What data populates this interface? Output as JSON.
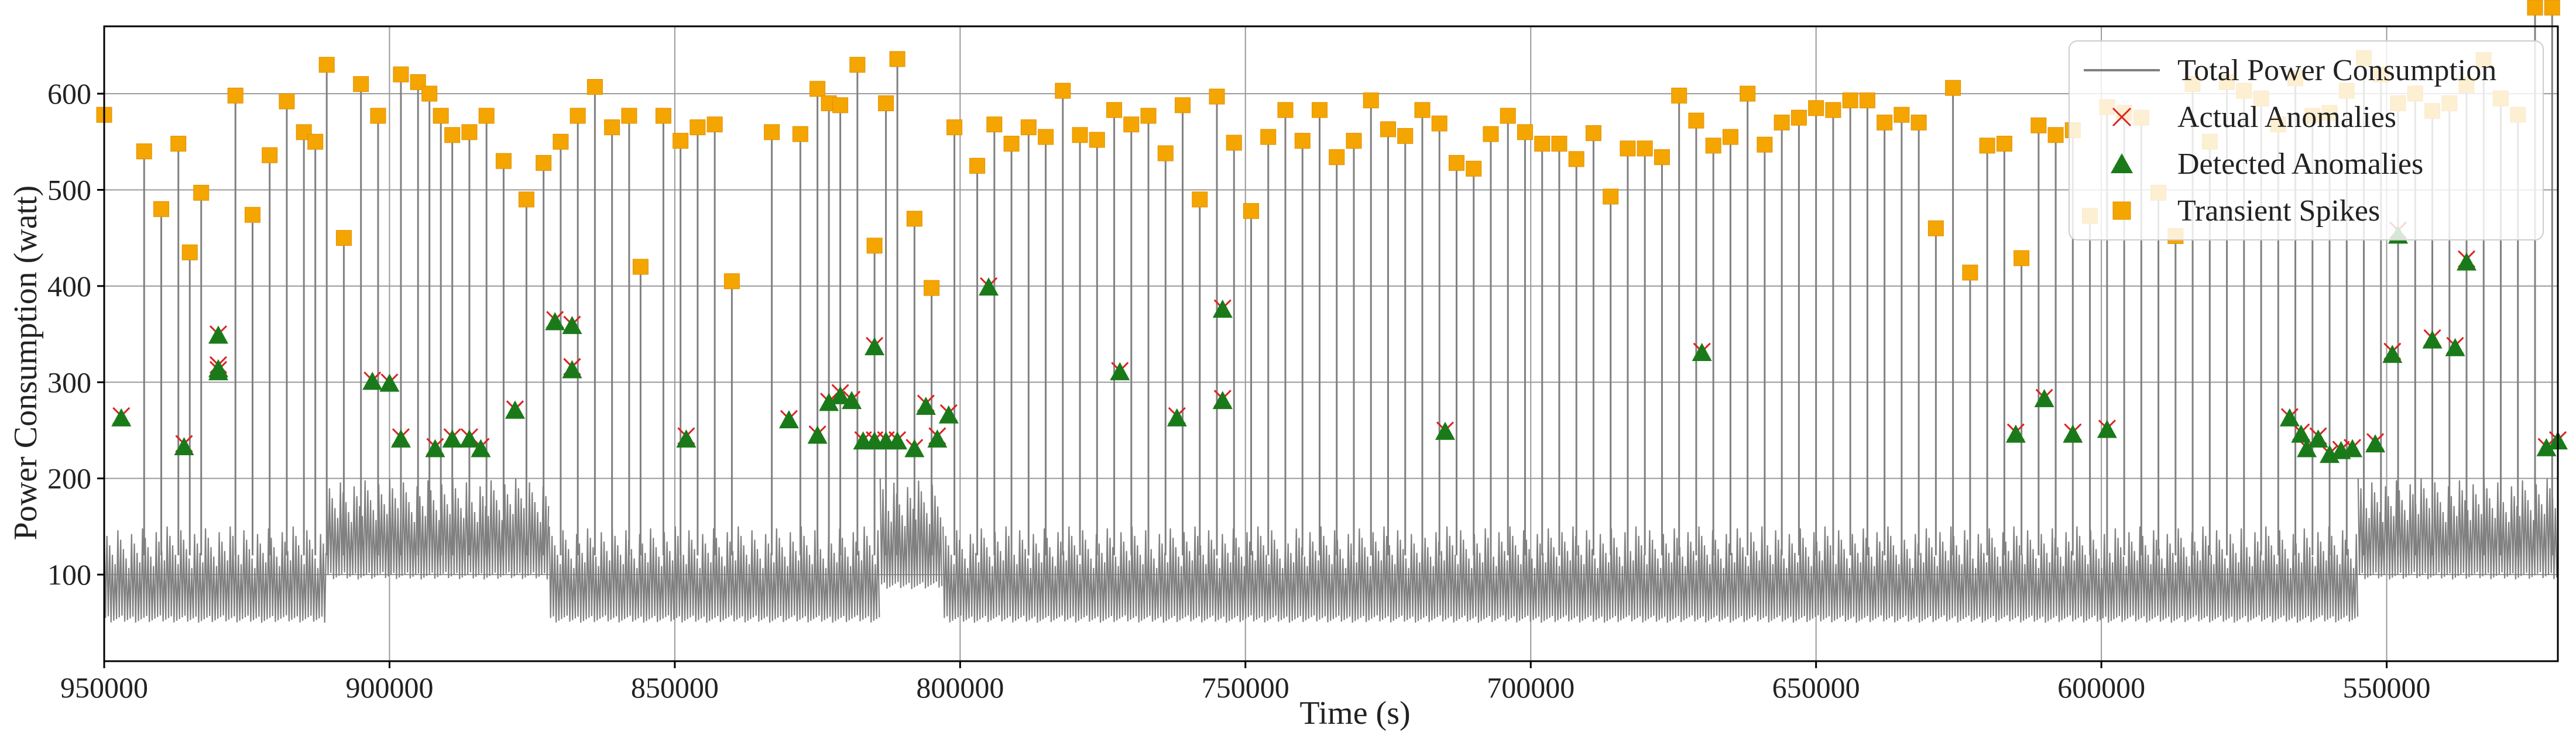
{
  "chart_data": {
    "type": "line",
    "title": "",
    "xlabel": "Time (s)",
    "ylabel": "Power Consumption (watt)",
    "xlim": [
      950000,
      520000
    ],
    "ylim": [
      10,
      670
    ],
    "x_reversed": true,
    "grid": true,
    "legend_position": "top-right",
    "x_ticks": [
      950000,
      900000,
      850000,
      800000,
      750000,
      700000,
      650000,
      600000,
      550000
    ],
    "y_ticks": [
      100,
      200,
      300,
      400,
      500,
      600
    ],
    "series": [
      {
        "name": "Total Power Consumption",
        "kind": "line",
        "color": "#808080",
        "segments": [
          {
            "x_start": 950000,
            "x_end": 911000,
            "low": 50,
            "high": 150
          },
          {
            "x_start": 911000,
            "x_end": 872000,
            "low": 95,
            "high": 200
          },
          {
            "x_start": 872000,
            "x_end": 814000,
            "low": 50,
            "high": 150
          },
          {
            "x_start": 814000,
            "x_end": 803000,
            "low": 85,
            "high": 200
          },
          {
            "x_start": 803000,
            "x_end": 555000,
            "low": 50,
            "high": 150
          },
          {
            "x_start": 555000,
            "x_end": 520000,
            "low": 95,
            "high": 200
          }
        ],
        "spike_x": [
          950000,
          943000,
          940000,
          937000,
          935000,
          933000,
          927000,
          924000,
          921000,
          918000,
          915000,
          913000,
          911000,
          908000,
          905000,
          902000,
          898000,
          895000,
          893000,
          891000,
          889000,
          886000,
          883000,
          880000,
          876000,
          873000,
          870000,
          867000,
          864000,
          861000,
          858000,
          856000,
          852000,
          849000,
          846000,
          843000,
          840000,
          833000,
          828000,
          825000,
          823000,
          821000,
          818000,
          815000,
          813000,
          811000,
          808000,
          805000,
          801000,
          797000,
          794000,
          791000,
          788000,
          785000,
          782000,
          779000,
          776000,
          773000,
          770000,
          767000,
          764000,
          761000,
          758000,
          755000,
          752000,
          749000,
          746000,
          743000,
          740000,
          737000,
          734000,
          731000,
          728000,
          725000,
          722000,
          719000,
          716000,
          713000,
          710000,
          707000,
          704000,
          701000,
          698000,
          695000,
          692000,
          689000,
          686000,
          683000,
          680000,
          677000,
          674000,
          671000,
          668000,
          665000,
          662000,
          659000,
          656000,
          653000,
          650000,
          647000,
          644000,
          641000,
          638000,
          635000,
          632000,
          629000,
          626000,
          623000,
          620000,
          617000,
          614000,
          611000,
          608000,
          605000,
          602000,
          599000,
          596000,
          593000,
          590000,
          587000,
          584000,
          581000,
          578000,
          575000,
          572000,
          569000,
          566000,
          563000,
          560000,
          557000,
          554000,
          551000,
          548000,
          545000,
          542000,
          539000,
          536000,
          533000,
          530000,
          527000,
          524000,
          521000
        ],
        "spike_y": [
          578,
          540,
          480,
          548,
          435,
          497,
          598,
          474,
          536,
          592,
          560,
          550,
          630,
          450,
          610,
          577,
          620,
          612,
          600,
          577,
          557,
          560,
          577,
          530,
          490,
          528,
          550,
          577,
          607,
          565,
          577,
          420,
          577,
          551,
          565,
          568,
          405,
          560,
          558,
          605,
          590,
          588,
          630,
          442,
          590,
          636,
          470,
          398,
          565,
          525,
          568,
          548,
          565,
          555,
          603,
          557,
          552,
          583,
          568,
          577,
          538,
          588,
          490,
          597,
          549,
          478,
          555,
          583,
          551,
          583,
          534,
          551,
          593,
          563,
          556,
          583,
          569,
          528,
          522,
          558,
          577,
          560,
          548,
          548,
          532,
          559,
          493,
          543,
          543,
          534,
          598,
          572,
          546,
          555,
          600,
          547,
          570,
          575,
          585,
          583,
          593,
          593,
          570,
          578,
          570,
          460,
          606,
          414,
          546,
          548,
          429,
          567,
          557,
          562,
          473,
          586,
          580,
          575,
          497,
          452,
          610,
          550,
          612,
          603,
          595,
          568,
          616,
          577,
          580,
          603,
          637,
          620,
          590,
          600,
          582,
          590,
          609,
          635,
          595,
          578
        ]
      },
      {
        "name": "Actual Anomalies",
        "kind": "scatter",
        "marker": "x",
        "color": "#dd2222",
        "x": [
          947000,
          936000,
          930000,
          930000,
          930000,
          903000,
          900000,
          898000,
          892000,
          889000,
          886000,
          884000,
          878000,
          878000,
          871000,
          868000,
          868000,
          868000,
          848000,
          830000,
          825000,
          823000,
          821000,
          819000,
          817000,
          815000,
          815000,
          813000,
          811000,
          808000,
          806000,
          804000,
          802000,
          795000,
          772000,
          762000,
          754000,
          754000,
          715000,
          670000,
          615000,
          610000,
          605000,
          599000,
          567000,
          565000,
          564000,
          562000,
          560000,
          558000,
          556000,
          552000,
          549000,
          548000,
          542000,
          538000,
          536000,
          522000,
          520000
        ],
        "y": [
          265,
          236,
          350,
          318,
          313,
          302,
          300,
          243,
          233,
          243,
          243,
          233,
          272,
          272,
          365,
          360,
          316,
          316,
          244,
          262,
          246,
          280,
          289,
          282,
          240,
          240,
          338,
          240,
          240,
          232,
          278,
          244,
          268,
          400,
          312,
          265,
          283,
          377,
          250,
          332,
          248,
          284,
          248,
          252,
          264,
          248,
          232,
          244,
          226,
          230,
          232,
          238,
          332,
          458,
          346,
          338,
          428,
          233,
          240
        ]
      },
      {
        "name": "Detected Anomalies",
        "kind": "scatter",
        "marker": "triangle",
        "color": "#1a7a1a",
        "x": [
          947000,
          936000,
          930000,
          930000,
          930000,
          903000,
          900000,
          898000,
          892000,
          889000,
          886000,
          884000,
          878000,
          878000,
          871000,
          868000,
          868000,
          868000,
          848000,
          830000,
          825000,
          823000,
          821000,
          819000,
          817000,
          815000,
          815000,
          813000,
          811000,
          808000,
          806000,
          804000,
          802000,
          795000,
          772000,
          762000,
          754000,
          754000,
          715000,
          670000,
          615000,
          610000,
          605000,
          599000,
          567000,
          565000,
          564000,
          562000,
          560000,
          558000,
          556000,
          552000,
          549000,
          548000,
          542000,
          538000,
          536000,
          522000,
          520000
        ],
        "y": [
          262,
          232,
          348,
          313,
          310,
          300,
          298,
          240,
          230,
          240,
          240,
          230,
          270,
          270,
          362,
          358,
          312,
          312,
          240,
          260,
          244,
          278,
          285,
          280,
          238,
          238,
          336,
          238,
          238,
          230,
          274,
          240,
          265,
          398,
          310,
          262,
          280,
          375,
          248,
          330,
          245,
          282,
          245,
          250,
          262,
          245,
          230,
          240,
          224,
          228,
          230,
          235,
          328,
          452,
          343,
          335,
          424,
          231,
          238
        ]
      },
      {
        "name": "Transient Spikes",
        "kind": "scatter",
        "marker": "square",
        "color": "#f5a500"
      }
    ]
  }
}
